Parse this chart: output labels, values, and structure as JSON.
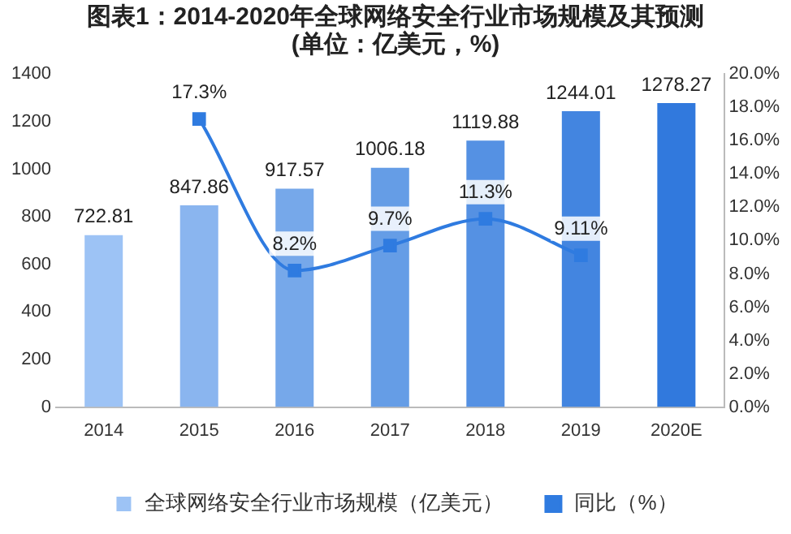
{
  "chart_data": {
    "type": "bar",
    "title": "图表1：2014-2020年全球网络安全行业市场规模及其预测(单位：亿美元，%)",
    "categories": [
      "2014",
      "2015",
      "2016",
      "2017",
      "2018",
      "2019",
      "2020E"
    ],
    "series": [
      {
        "name": "全球网络安全行业市场规模（亿美元）",
        "colors": [
          "#9dc3f5",
          "#8ab5ef",
          "#76a8ea",
          "#659de6",
          "#5591e3",
          "#4385e0",
          "#3179dd"
        ],
        "values": [
          722.81,
          847.86,
          917.57,
          1006.18,
          1119.88,
          1244.01,
          1278.27
        ],
        "value_labels": [
          "722.81",
          "847.86",
          "917.57",
          "1006.18",
          "1119.88",
          "1244.01",
          "1278.27"
        ]
      },
      {
        "name": "同比（%）",
        "type": "line",
        "axis": "y2",
        "color": "#2f7be0",
        "marker": "square",
        "values": [
          null,
          17.3,
          8.2,
          9.7,
          11.3,
          9.11,
          null
        ],
        "value_labels": [
          null,
          "17.3%",
          "8.2%",
          "9.7%",
          "11.3%",
          "9.11%",
          null
        ]
      }
    ],
    "ylim": [
      0,
      1400
    ],
    "yticks": [
      0,
      200,
      400,
      600,
      800,
      1000,
      1200,
      1400
    ],
    "y2lim": [
      0,
      20
    ],
    "y2ticks": [
      {
        "value": 0,
        "label": "0.0%"
      },
      {
        "value": 2,
        "label": "2.0%"
      },
      {
        "value": 4,
        "label": "4.0%"
      },
      {
        "value": 6,
        "label": "6.0%"
      },
      {
        "value": 8,
        "label": "8.0%"
      },
      {
        "value": 10,
        "label": "10.0%"
      },
      {
        "value": 12,
        "label": "12.0%"
      },
      {
        "value": 14,
        "label": "14.0%"
      },
      {
        "value": 16,
        "label": "16.0%"
      },
      {
        "value": 18,
        "label": "18.0%"
      },
      {
        "value": 20,
        "label": "20.0%"
      }
    ],
    "grid": false,
    "legend": "bottom"
  }
}
